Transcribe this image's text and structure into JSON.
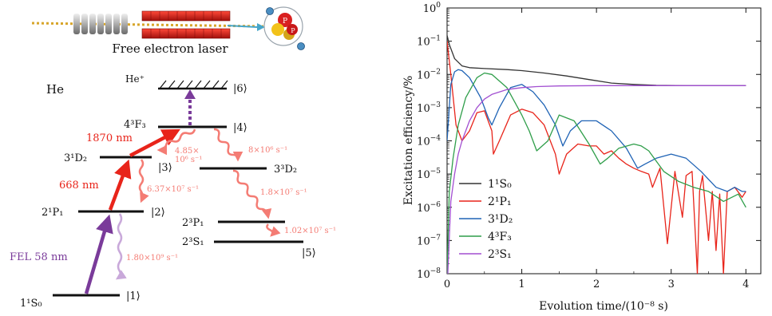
{
  "colors": {
    "red": "#e8241a",
    "pink": "#f47c74",
    "purple": "#7a3b9a",
    "lightpurple": "#c9a9da",
    "black": "#111111"
  },
  "scheme": {
    "laser_caption": "Free electron laser",
    "atom_label": "He",
    "ion_label": "He⁺",
    "atom_p_label": "P",
    "levels": [
      {
        "id": "1",
        "term": "1¹S₀",
        "ket": "|1⟩"
      },
      {
        "id": "2",
        "term": "2¹P₁",
        "ket": "|2⟩"
      },
      {
        "id": "3",
        "term": "3¹D₂",
        "ket": "|3⟩"
      },
      {
        "id": "4",
        "term": "4³F₃",
        "ket": "|4⟩"
      },
      {
        "id": "5",
        "term": "2³S₁",
        "ket": "|5⟩"
      },
      {
        "id": "6",
        "term": "",
        "ket": "|6⟩"
      },
      {
        "id": "3d3",
        "term": "3³D₂",
        "ket": ""
      },
      {
        "id": "2p3",
        "term": "2³P₁",
        "ket": ""
      }
    ],
    "lasers": {
      "fel": "FEL 58 nm",
      "l668": "668 nm",
      "l1870": "1870 nm"
    },
    "decays": {
      "d21": "1.80×10⁹ s⁻¹",
      "d32": "6.37×10⁷ s⁻¹",
      "d43_a": "4.85×",
      "d43_b": "10⁶ s⁻¹",
      "d4_3d": "8×10⁶ s⁻¹",
      "d3d_2p": "1.8×10⁷ s⁻¹",
      "d2p_2s": "1.02×10⁷ s⁻¹"
    }
  },
  "chart_data": {
    "type": "line",
    "xlabel": "Evolution time/(10⁻⁸ s)",
    "ylabel": "Excitation efficiency/%",
    "xlim": [
      0,
      4.2
    ],
    "ylim_log10": [
      -8,
      0
    ],
    "x_ticks": [
      0,
      1,
      2,
      3,
      4
    ],
    "y_ticks": [
      {
        "exp": 0,
        "base": "10",
        "sup": "0"
      },
      {
        "exp": -1,
        "base": "10",
        "sup": "−1"
      },
      {
        "exp": -2,
        "base": "10",
        "sup": "−2"
      },
      {
        "exp": -3,
        "base": "10",
        "sup": "−3"
      },
      {
        "exp": -4,
        "base": "10",
        "sup": "−4"
      },
      {
        "exp": -5,
        "base": "10",
        "sup": "−5"
      },
      {
        "exp": -6,
        "base": "10",
        "sup": "−6"
      },
      {
        "exp": -7,
        "base": "10",
        "sup": "−7"
      },
      {
        "exp": -8,
        "base": "10",
        "sup": "−8"
      }
    ],
    "legend_position": "bottom-left",
    "series": [
      {
        "name": "1¹S₀",
        "color": "#333333",
        "x": [
          0,
          0.03,
          0.1,
          0.2,
          0.3,
          0.5,
          0.8,
          1.0,
          1.3,
          1.6,
          1.9,
          2.2,
          2.5,
          2.8,
          3.2,
          3.6,
          4.0
        ],
        "y": [
          0.15,
          0.08,
          0.03,
          0.018,
          0.016,
          0.015,
          0.014,
          0.013,
          0.011,
          0.009,
          0.007,
          0.0055,
          0.005,
          0.0047,
          0.0046,
          0.0046,
          0.0046
        ]
      },
      {
        "name": "2¹P₁",
        "color": "#e8241a",
        "x": [
          0,
          0.05,
          0.12,
          0.2,
          0.3,
          0.4,
          0.5,
          0.6,
          0.62,
          0.7,
          0.85,
          1.0,
          1.15,
          1.3,
          1.45,
          1.5,
          1.6,
          1.75,
          1.9,
          2.0,
          2.1,
          2.2,
          2.3,
          2.4,
          2.5,
          2.6,
          2.7,
          2.75,
          2.85,
          2.95,
          3.05,
          3.15,
          3.2,
          3.28,
          3.35,
          3.38,
          3.42,
          3.5,
          3.55,
          3.6,
          3.65,
          3.7,
          3.75,
          3.85,
          3.95,
          4.0
        ],
        "y": [
          0.1,
          0.01,
          0.0003,
          0.0001,
          0.0002,
          0.0007,
          0.0008,
          0.0002,
          4e-05,
          0.0001,
          0.0006,
          0.0009,
          0.0007,
          0.0003,
          4e-05,
          1e-05,
          4e-05,
          8e-05,
          7e-05,
          7e-05,
          4e-05,
          5e-05,
          3e-05,
          2e-05,
          1.5e-05,
          1.2e-05,
          1e-05,
          4e-06,
          1.5e-05,
          8e-08,
          1.2e-05,
          5e-07,
          9e-06,
          1.2e-05,
          1e-08,
          3e-06,
          9e-06,
          1e-07,
          3e-06,
          5e-08,
          2.5e-06,
          1e-08,
          3e-06,
          4e-06,
          2e-06,
          3e-06
        ]
      },
      {
        "name": "3¹D₂",
        "color": "#1f63b5",
        "x": [
          0,
          0.05,
          0.1,
          0.15,
          0.2,
          0.3,
          0.45,
          0.55,
          0.6,
          0.7,
          0.85,
          1.0,
          1.15,
          1.3,
          1.45,
          1.55,
          1.65,
          1.8,
          2.0,
          2.2,
          2.4,
          2.55,
          2.65,
          2.8,
          3.0,
          3.2,
          3.4,
          3.6,
          3.75,
          3.85,
          3.95,
          4.0
        ],
        "y": [
          0.0001,
          0.005,
          0.012,
          0.014,
          0.013,
          0.008,
          0.002,
          0.0005,
          0.0003,
          0.001,
          0.004,
          0.005,
          0.003,
          0.0012,
          0.0003,
          7e-05,
          0.0002,
          0.0004,
          0.0004,
          0.0002,
          6e-05,
          1.5e-05,
          2e-05,
          3e-05,
          4e-05,
          3e-05,
          1.2e-05,
          4e-06,
          3e-06,
          4e-06,
          3e-06,
          3e-06
        ]
      },
      {
        "name": "4³F₃",
        "color": "#2f9e4a",
        "x": [
          0,
          0.03,
          0.08,
          0.15,
          0.25,
          0.4,
          0.5,
          0.6,
          0.8,
          1.0,
          1.1,
          1.2,
          1.35,
          1.5,
          1.7,
          1.9,
          2.05,
          2.15,
          2.3,
          2.5,
          2.6,
          2.7,
          2.9,
          3.1,
          3.3,
          3.5,
          3.7,
          3.9,
          4.0
        ],
        "y": [
          1e-08,
          3e-06,
          3e-05,
          0.0003,
          0.002,
          0.008,
          0.011,
          0.01,
          0.004,
          0.0006,
          0.0002,
          5e-05,
          0.0001,
          0.0006,
          0.0004,
          8e-05,
          2e-05,
          3e-05,
          6e-05,
          8e-05,
          7e-05,
          5e-05,
          1.2e-05,
          6e-06,
          4e-06,
          3e-06,
          1.5e-06,
          2.5e-06,
          1e-06
        ]
      },
      {
        "name": "2³S₁",
        "color": "#a24fd1",
        "x": [
          0.01,
          0.05,
          0.1,
          0.15,
          0.2,
          0.3,
          0.4,
          0.5,
          0.6,
          0.8,
          1.0,
          1.2,
          1.5,
          2.0,
          2.5,
          3.0,
          3.5,
          4.0
        ],
        "y": [
          1e-08,
          1.5e-06,
          1e-05,
          4e-05,
          0.0001,
          0.0004,
          0.001,
          0.0018,
          0.0025,
          0.0035,
          0.004,
          0.0043,
          0.0045,
          0.0046,
          0.0046,
          0.0046,
          0.0046,
          0.0046
        ]
      }
    ]
  }
}
